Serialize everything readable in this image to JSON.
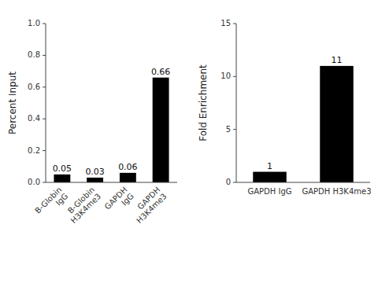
{
  "chart_data": [
    {
      "type": "bar",
      "categories": [
        "B-Globin\nIgG",
        "B-Globin\nH3K4me3",
        "GAPDH\nIgG",
        "GAPDH\nH3K4me3"
      ],
      "values": [
        0.05,
        0.03,
        0.06,
        0.66
      ],
      "color": "#000000",
      "ylabel": "Percent Input",
      "ylim": [
        0,
        1.0
      ],
      "yticks": [
        {
          "value": 0.0,
          "label": "0.0"
        },
        0.2,
        0.4,
        0.6,
        0.8,
        {
          "value": 1.0,
          "label": "1.0"
        }
      ],
      "data_labels": true
    },
    {
      "type": "bar",
      "categories": [
        "GAPDH IgG",
        "GAPDH H3K4me3"
      ],
      "values": [
        1,
        11
      ],
      "color": "#000000",
      "ylabel": "Fold Enrichment",
      "ylim": [
        0,
        15
      ],
      "yticks": [
        0,
        5,
        10,
        15
      ],
      "data_labels": true
    }
  ]
}
